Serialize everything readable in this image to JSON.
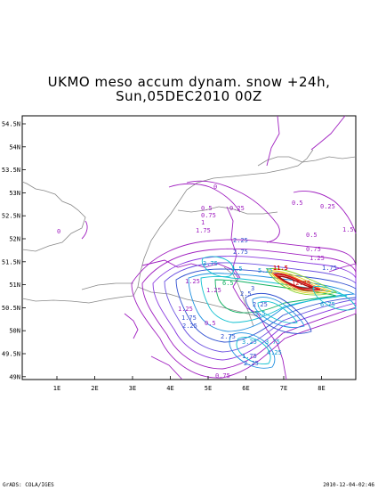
{
  "title": {
    "line1": "UKMO meso accum dynam. snow +24h,",
    "line2": "Sun,05DEC2010 00Z"
  },
  "axes": {
    "lat_labels": [
      "54.5N",
      "54N",
      "53.5N",
      "53N",
      "52.5N",
      "52N",
      "51.5N",
      "51N",
      "50.5N",
      "50N",
      "49.5N",
      "49N"
    ],
    "lon_labels": [
      "1E",
      "2E",
      "3E",
      "4E",
      "5E",
      "6E",
      "7E",
      "8E"
    ]
  },
  "contour_labels": [
    {
      "text": "0",
      "color": "#a020c0"
    },
    {
      "text": "0",
      "color": "#a020c0"
    },
    {
      "text": "0.25",
      "color": "#a020c0"
    },
    {
      "text": "0.5",
      "color": "#a020c0"
    },
    {
      "text": "0.25",
      "color": "#a020c0"
    },
    {
      "text": "0.5",
      "color": "#a020c0"
    },
    {
      "text": "0.75",
      "color": "#a020c0"
    },
    {
      "text": "1",
      "color": "#a020c0"
    },
    {
      "text": "1.75",
      "color": "#a020c0"
    },
    {
      "text": "2.25",
      "color": "#3050d0"
    },
    {
      "text": "2.75",
      "color": "#3050d0"
    },
    {
      "text": "0.5",
      "color": "#a020c0"
    },
    {
      "text": "0.75",
      "color": "#a020c0"
    },
    {
      "text": "1.25",
      "color": "#a020c0"
    },
    {
      "text": "1.5",
      "color": "#a020c0"
    },
    {
      "text": "11.5",
      "color": "#e01010"
    },
    {
      "text": "1.75",
      "color": "#3050d0"
    },
    {
      "text": "3.75",
      "color": "#10a0d0"
    },
    {
      "text": "4.5",
      "color": "#10a0d0"
    },
    {
      "text": "5.25",
      "color": "#10a0d0"
    },
    {
      "text": "6.5",
      "color": "#10b060"
    },
    {
      "text": "12.75",
      "color": "#e01010"
    },
    {
      "text": "1.25",
      "color": "#a020c0"
    },
    {
      "text": "1.25",
      "color": "#a020c0"
    },
    {
      "text": "2.5",
      "color": "#3050d0"
    },
    {
      "text": "3",
      "color": "#3050d0"
    },
    {
      "text": "6.75",
      "color": "#10a0d0"
    },
    {
      "text": "2.25",
      "color": "#3050d0"
    },
    {
      "text": "3.5",
      "color": "#10a0d0"
    },
    {
      "text": "1.25",
      "color": "#a020c0"
    },
    {
      "text": "1.75",
      "color": "#3050d0"
    },
    {
      "text": "2.25",
      "color": "#3050d0"
    },
    {
      "text": "0.5",
      "color": "#a020c0"
    },
    {
      "text": "2.75",
      "color": "#3050d0"
    },
    {
      "text": "3.25",
      "color": "#10a0d0"
    },
    {
      "text": "3.75",
      "color": "#10a0d0"
    },
    {
      "text": "4.25",
      "color": "#10a0d0"
    },
    {
      "text": "1.75",
      "color": "#3050d0"
    },
    {
      "text": "2.25",
      "color": "#3050d0"
    },
    {
      "text": "0.75",
      "color": "#a020c0"
    }
  ],
  "footer": {
    "left": "GrADS: COLA/IGES",
    "right": "2010-12-04-02:46"
  }
}
